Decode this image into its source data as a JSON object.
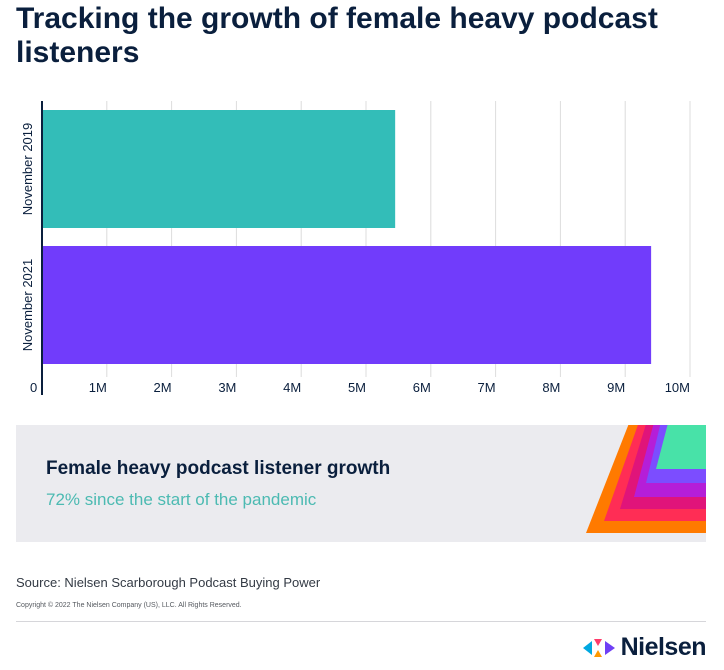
{
  "header": {
    "title": "Tracking the growth of female heavy podcast listeners"
  },
  "chart_data": {
    "type": "bar",
    "orientation": "horizontal",
    "categories": [
      "November 2019",
      "November 2021"
    ],
    "values": [
      5450000,
      9400000
    ],
    "colors": [
      "#33bdb8",
      "#713cfb"
    ],
    "xlim": [
      0,
      10000000
    ],
    "xticks": [
      0,
      1000000,
      2000000,
      3000000,
      4000000,
      5000000,
      6000000,
      7000000,
      8000000,
      9000000,
      10000000
    ],
    "xtick_labels": [
      "0",
      "1M",
      "2M",
      "3M",
      "4M",
      "5M",
      "6M",
      "7M",
      "8M",
      "9M",
      "10M"
    ],
    "grid": true
  },
  "callout": {
    "heading": "Female heavy podcast listener growth",
    "subtext": "72% since the start of the pandemic",
    "subtext_color": "#4cbab2",
    "graphic_colors": [
      "#ff7a00",
      "#ff2d55",
      "#e0147a",
      "#b51ed8",
      "#7c4dff",
      "#48e2a8"
    ]
  },
  "footer": {
    "source": "Source: Nielsen Scarborough Podcast Buying Power",
    "copyright": "Copyright © 2022 The Nielsen Company (US), LLC. All Rights Reserved."
  },
  "brand": {
    "name": "Nielsen",
    "logo_icon": "nielsen-logo-icon",
    "logo_colors": [
      "#00a8e1",
      "#ff3b6b",
      "#ff9900",
      "#6f3ff5"
    ]
  }
}
